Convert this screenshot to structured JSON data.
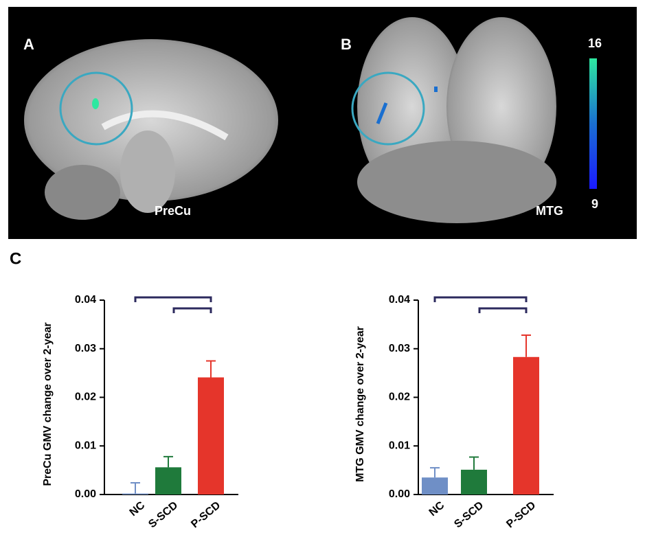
{
  "figure": {
    "panel_labels": [
      "A",
      "B",
      "C"
    ],
    "region_labels": [
      "PreCu",
      "MTG"
    ],
    "colorbar": {
      "max": 16,
      "min": 9
    }
  },
  "chart_data": [
    {
      "type": "bar",
      "y_label": "PreCu GMV change over 2-year",
      "categories": [
        "NC",
        "S-SCD",
        "P-SCD"
      ],
      "values": [
        0.0002,
        0.0056,
        0.0241
      ],
      "errors": [
        0.0022,
        0.0022,
        0.0034
      ],
      "colors": [
        "#6f8fc6",
        "#1f7a3b",
        "#e5352b"
      ],
      "ylim": [
        0,
        0.04
      ],
      "yticks": [
        {
          "value": 0,
          "label": "0.00"
        },
        0.01,
        0.02,
        0.03,
        0.04
      ]
    },
    {
      "type": "bar",
      "y_label": "MTG GMV change over 2-year",
      "categories": [
        "NC",
        "S-SCD",
        "P-SCD"
      ],
      "values": [
        0.0035,
        0.0051,
        0.0283
      ],
      "errors": [
        0.002,
        0.0026,
        0.0045
      ],
      "colors": [
        "#6f8fc6",
        "#1f7a3b",
        "#e5352b"
      ],
      "ylim": [
        0,
        0.04
      ],
      "yticks": [
        {
          "value": 0,
          "label": "0.00"
        },
        0.01,
        0.02,
        0.03,
        0.04
      ]
    }
  ]
}
